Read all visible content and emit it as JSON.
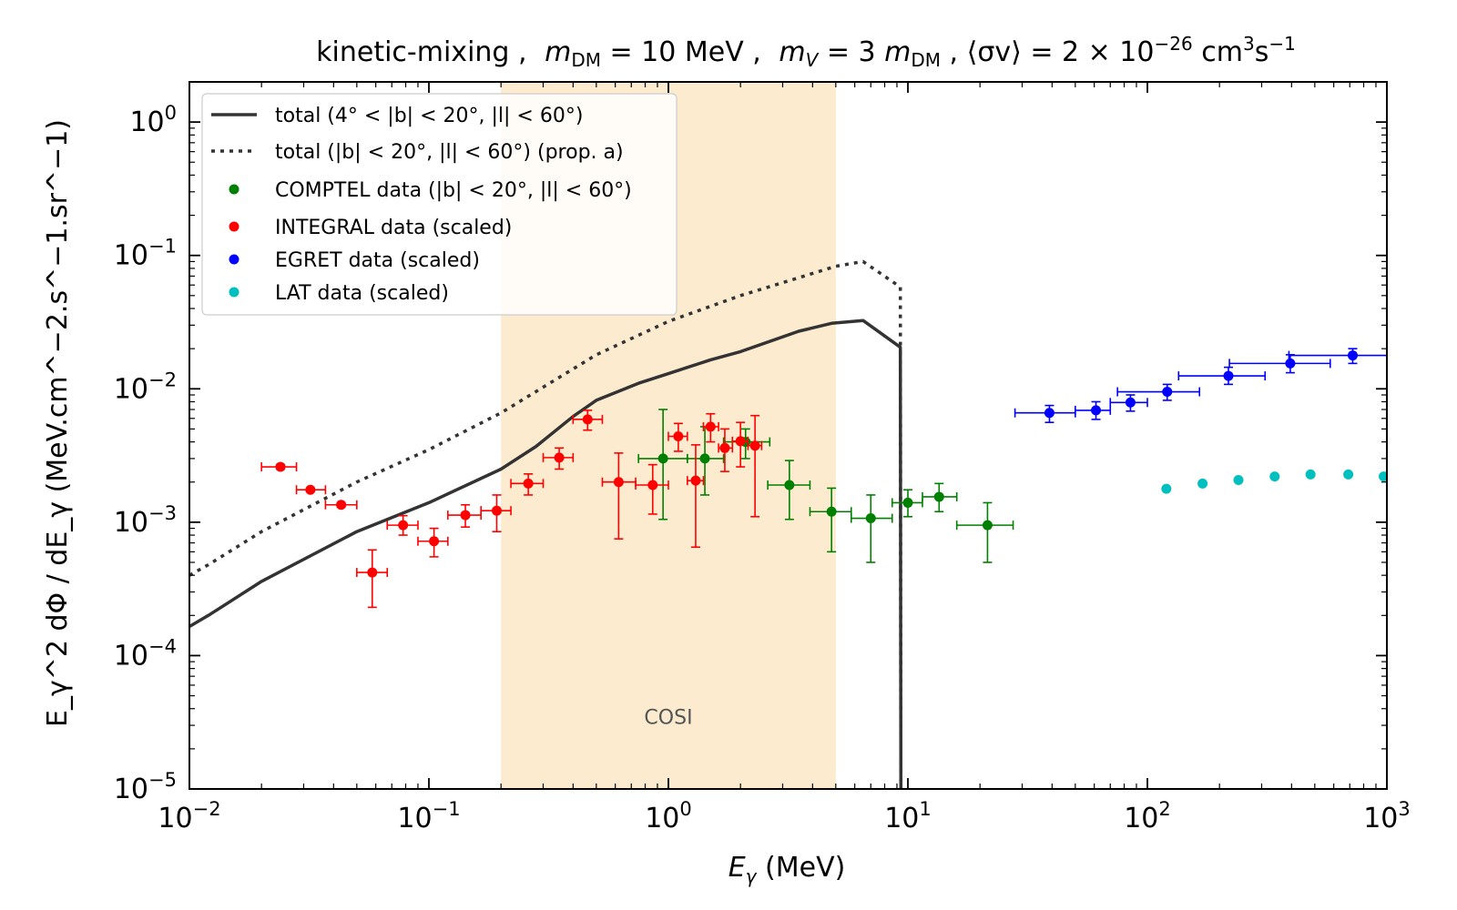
{
  "chart_data": {
    "type": "line",
    "title": "kinetic-mixing ,  m_DM = 10 MeV ,  m_V = 3 m_DM ,  ⟨σv⟩ = 2 × 10^−26 cm^3 s^−1",
    "title_parts": {
      "prefix": "kinetic-mixing , ",
      "mdm": "m",
      "mdm_sub": "DM",
      "mdm_val": " = 10 MeV , ",
      "mv": "m",
      "mv_sub": "V",
      "mv_eq": " = 3 ",
      "mv_m": "m",
      "mv_m_sub": "DM",
      "sep": " ,  ",
      "sigma": "⟨σv⟩ = 2 × 10",
      "sigma_exp": "−26",
      "unit1": " cm",
      "unit1_exp": "3",
      "unit2": "s",
      "unit2_exp": "−1"
    },
    "xlabel": {
      "var": "E",
      "sub": "γ",
      "unit": " (MeV)"
    },
    "ylabel": "E_γ^2 dΦ / dE_γ (MeV.cm^−2.s^−1.sr^−1)",
    "xscale": "log",
    "yscale": "log",
    "xlim": [
      0.01,
      1000
    ],
    "ylim": [
      1e-05,
      2
    ],
    "x_ticks": [
      {
        "value": 0.01,
        "base": "10",
        "exp": "−2"
      },
      {
        "value": 0.1,
        "base": "10",
        "exp": "−1"
      },
      {
        "value": 1,
        "base": "10",
        "exp": "0"
      },
      {
        "value": 10,
        "base": "10",
        "exp": "1"
      },
      {
        "value": 100,
        "base": "10",
        "exp": "2"
      },
      {
        "value": 1000,
        "base": "10",
        "exp": "3"
      }
    ],
    "y_ticks": [
      {
        "value": 1e-05,
        "base": "10",
        "exp": "−5"
      },
      {
        "value": 0.0001,
        "base": "10",
        "exp": "−4"
      },
      {
        "value": 0.001,
        "base": "10",
        "exp": "−3"
      },
      {
        "value": 0.01,
        "base": "10",
        "exp": "−2"
      },
      {
        "value": 0.1,
        "base": "10",
        "exp": "−1"
      },
      {
        "value": 1,
        "base": "10",
        "exp": "0"
      }
    ],
    "band": {
      "label": "COSI",
      "x_range": [
        0.2,
        5
      ],
      "color": "#fdebd0",
      "label_x": 1.0,
      "label_y": 3.5e-05
    },
    "lines": [
      {
        "name": "total (4° < |b| < 20°, |l| < 60°)",
        "style": "solid",
        "color": "#333333",
        "points": [
          [
            0.01,
            0.000165
          ],
          [
            0.012,
            0.0002
          ],
          [
            0.02,
            0.00036
          ],
          [
            0.05,
            0.00085
          ],
          [
            0.1,
            0.0014
          ],
          [
            0.2,
            0.0025
          ],
          [
            0.28,
            0.0037
          ],
          [
            0.4,
            0.0062
          ],
          [
            0.5,
            0.0082
          ],
          [
            0.75,
            0.011
          ],
          [
            1.0,
            0.013
          ],
          [
            1.5,
            0.0165
          ],
          [
            2.0,
            0.019
          ],
          [
            3.5,
            0.027
          ],
          [
            4.8,
            0.031
          ],
          [
            6.5,
            0.0325
          ],
          [
            9.3,
            0.0205
          ],
          [
            9.35,
            1e-05
          ]
        ]
      },
      {
        "name": "total (|b| < 20°, |l| < 60°) (prop. a)",
        "style": "dotted",
        "color": "#333333",
        "points": [
          [
            0.01,
            0.0004
          ],
          [
            0.012,
            0.00048
          ],
          [
            0.02,
            0.00085
          ],
          [
            0.05,
            0.002
          ],
          [
            0.1,
            0.0035
          ],
          [
            0.2,
            0.0066
          ],
          [
            0.5,
            0.018
          ],
          [
            1.0,
            0.032
          ],
          [
            2.0,
            0.05
          ],
          [
            3.5,
            0.068
          ],
          [
            5.0,
            0.083
          ],
          [
            6.5,
            0.09
          ],
          [
            9.3,
            0.058
          ],
          [
            9.35,
            1e-05
          ]
        ]
      }
    ],
    "series": [
      {
        "name": "COMPTEL data (|b| < 20°, |l| < 60°)",
        "color": "#008000",
        "points": [
          {
            "x": 0.95,
            "y": 0.003,
            "xlo": 0.75,
            "xhi": 1.2,
            "ylo": 0.00105,
            "yhi": 0.007
          },
          {
            "x": 1.42,
            "y": 0.003,
            "xlo": 1.2,
            "xhi": 1.7,
            "ylo": 0.0016,
            "yhi": 0.0052
          },
          {
            "x": 2.1,
            "y": 0.004,
            "xlo": 1.7,
            "xhi": 2.65,
            "ylo": 0.003,
            "yhi": 0.005
          },
          {
            "x": 3.2,
            "y": 0.0019,
            "xlo": 2.6,
            "xhi": 3.9,
            "ylo": 0.00105,
            "yhi": 0.0029
          },
          {
            "x": 4.8,
            "y": 0.0012,
            "xlo": 3.9,
            "xhi": 5.8,
            "ylo": 0.0006,
            "yhi": 0.0018
          },
          {
            "x": 7.0,
            "y": 0.00107,
            "xlo": 5.8,
            "xhi": 8.6,
            "ylo": 0.0005,
            "yhi": 0.0016
          },
          {
            "x": 10.0,
            "y": 0.0014,
            "xlo": 8.6,
            "xhi": 11.5,
            "ylo": 0.0011,
            "yhi": 0.00175
          },
          {
            "x": 13.5,
            "y": 0.00155,
            "xlo": 11.5,
            "xhi": 16.0,
            "ylo": 0.0012,
            "yhi": 0.00195
          },
          {
            "x": 21.5,
            "y": 0.00095,
            "xlo": 16.0,
            "xhi": 27.5,
            "ylo": 0.0005,
            "yhi": 0.0014
          }
        ]
      },
      {
        "name": "INTEGRAL data (scaled)",
        "color": "#ff0000",
        "points": [
          {
            "x": 0.024,
            "y": 0.0026,
            "xlo": 0.02,
            "xhi": 0.028,
            "ylo": 0.0025,
            "yhi": 0.0027
          },
          {
            "x": 0.032,
            "y": 0.00175,
            "xlo": 0.028,
            "xhi": 0.037,
            "ylo": 0.0017,
            "yhi": 0.0018
          },
          {
            "x": 0.043,
            "y": 0.00135,
            "xlo": 0.037,
            "xhi": 0.05,
            "ylo": 0.0013,
            "yhi": 0.0014
          },
          {
            "x": 0.058,
            "y": 0.00042,
            "xlo": 0.05,
            "xhi": 0.067,
            "ylo": 0.00023,
            "yhi": 0.00062
          },
          {
            "x": 0.078,
            "y": 0.00095,
            "xlo": 0.067,
            "xhi": 0.09,
            "ylo": 0.0008,
            "yhi": 0.00112
          },
          {
            "x": 0.105,
            "y": 0.00072,
            "xlo": 0.09,
            "xhi": 0.12,
            "ylo": 0.00055,
            "yhi": 0.0009
          },
          {
            "x": 0.142,
            "y": 0.00113,
            "xlo": 0.12,
            "xhi": 0.165,
            "ylo": 0.00092,
            "yhi": 0.00135
          },
          {
            "x": 0.192,
            "y": 0.00122,
            "xlo": 0.165,
            "xhi": 0.22,
            "ylo": 0.00085,
            "yhi": 0.0016
          },
          {
            "x": 0.26,
            "y": 0.00195,
            "xlo": 0.22,
            "xhi": 0.3,
            "ylo": 0.0016,
            "yhi": 0.0023
          },
          {
            "x": 0.35,
            "y": 0.00305,
            "xlo": 0.3,
            "xhi": 0.4,
            "ylo": 0.0025,
            "yhi": 0.0036
          },
          {
            "x": 0.46,
            "y": 0.0059,
            "xlo": 0.4,
            "xhi": 0.53,
            "ylo": 0.0049,
            "yhi": 0.0069
          },
          {
            "x": 0.62,
            "y": 0.002,
            "xlo": 0.53,
            "xhi": 0.73,
            "ylo": 0.00075,
            "yhi": 0.0033
          },
          {
            "x": 0.86,
            "y": 0.0019,
            "xlo": 0.73,
            "xhi": 1.0,
            "ylo": 0.00115,
            "yhi": 0.0027
          },
          {
            "x": 1.1,
            "y": 0.0044,
            "xlo": 1.0,
            "xhi": 1.2,
            "ylo": 0.0034,
            "yhi": 0.0055
          },
          {
            "x": 1.3,
            "y": 0.00205,
            "xlo": 1.2,
            "xhi": 1.4,
            "ylo": 0.00065,
            "yhi": 0.0038
          },
          {
            "x": 1.5,
            "y": 0.0052,
            "xlo": 1.4,
            "xhi": 1.62,
            "ylo": 0.004,
            "yhi": 0.0065
          },
          {
            "x": 1.72,
            "y": 0.0036,
            "xlo": 1.62,
            "xhi": 1.85,
            "ylo": 0.0024,
            "yhi": 0.005
          },
          {
            "x": 2.0,
            "y": 0.00405,
            "xlo": 1.85,
            "xhi": 2.15,
            "ylo": 0.0026,
            "yhi": 0.0056
          },
          {
            "x": 2.3,
            "y": 0.00375,
            "xlo": 2.15,
            "xhi": 2.45,
            "ylo": 0.0011,
            "yhi": 0.0063
          }
        ]
      },
      {
        "name": "EGRET data (scaled)",
        "color": "#0000ff",
        "points": [
          {
            "x": 39,
            "y": 0.0066,
            "xlo": 28,
            "xhi": 50,
            "ylo": 0.0056,
            "yhi": 0.0075
          },
          {
            "x": 61,
            "y": 0.0069,
            "xlo": 50,
            "xhi": 70,
            "ylo": 0.0059,
            "yhi": 0.008
          },
          {
            "x": 85,
            "y": 0.0079,
            "xlo": 70,
            "xhi": 100,
            "ylo": 0.0068,
            "yhi": 0.009
          },
          {
            "x": 121,
            "y": 0.0095,
            "xlo": 75,
            "xhi": 165,
            "ylo": 0.0082,
            "yhi": 0.0108
          },
          {
            "x": 218,
            "y": 0.0125,
            "xlo": 135,
            "xhi": 310,
            "ylo": 0.0108,
            "yhi": 0.0145
          },
          {
            "x": 395,
            "y": 0.0155,
            "xlo": 220,
            "xhi": 580,
            "ylo": 0.0132,
            "yhi": 0.018
          },
          {
            "x": 720,
            "y": 0.0178,
            "xlo": 390,
            "xhi": 1000,
            "ylo": 0.0155,
            "yhi": 0.02
          }
        ]
      },
      {
        "name": "LAT data (scaled)",
        "color": "#00bfbf",
        "points": [
          {
            "x": 120,
            "y": 0.00178
          },
          {
            "x": 170,
            "y": 0.00195
          },
          {
            "x": 240,
            "y": 0.00207
          },
          {
            "x": 340,
            "y": 0.0022
          },
          {
            "x": 480,
            "y": 0.00228
          },
          {
            "x": 690,
            "y": 0.00228
          },
          {
            "x": 970,
            "y": 0.0022
          }
        ]
      }
    ],
    "legend": {
      "placement": "top-left",
      "entries": [
        {
          "label": "total (4° < |b| < 20°, |l| < 60°)",
          "kind": "line",
          "style": "solid",
          "color": "#333333"
        },
        {
          "label": "total (|b| < 20°, |l| < 60°) (prop. a)",
          "kind": "line",
          "style": "dotted",
          "color": "#333333"
        },
        {
          "label": "COMPTEL data (|b| < 20°, |l| < 60°)",
          "kind": "marker",
          "color": "#008000"
        },
        {
          "label": "INTEGRAL data (scaled)",
          "kind": "marker",
          "color": "#ff0000"
        },
        {
          "label": "EGRET data (scaled)",
          "kind": "marker",
          "color": "#0000ff"
        },
        {
          "label": "LAT data (scaled)",
          "kind": "marker",
          "color": "#00bfbf"
        }
      ]
    }
  }
}
